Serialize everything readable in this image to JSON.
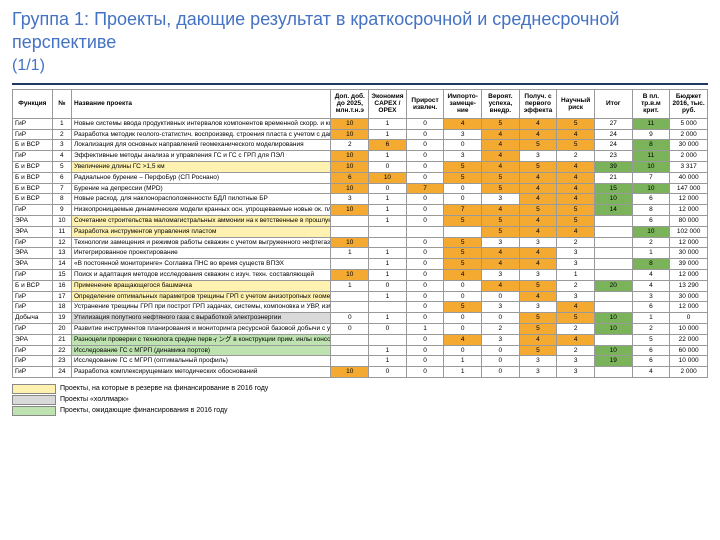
{
  "title": "Группа 1: Проекты, дающие результат в краткосрочной и среднесрочной перспективе",
  "subtitle": "(1/1)",
  "columns": [
    "Функция",
    "№",
    "Название проекта",
    "Доп. доб. до 2025, млн.т.н.э",
    "Экономия CAPEX / OPEX",
    "Прирост извлеч.",
    "Импорто­замеще­ние",
    "Вероят. успеха, внедр.",
    "Получ. с первого эффекта",
    "Научный риск",
    "Итог",
    "В пл. тр.в.м крит.",
    "Бюджет 2016, тыс. руб."
  ],
  "legend": [
    {
      "color": "#fff2b0",
      "text": "Проекты, на которые в резерве на финансирование в 2016 году"
    },
    {
      "color": "#d9d9d9",
      "text": "Проекты «холлмарк»"
    },
    {
      "color": "#bfe3b0",
      "text": "Проекты, ожидающие финансирования в 2016 году"
    }
  ],
  "rows": [
    {
      "f": "ГиР",
      "n": 1,
      "name": "Новые системы ввода продуктивных интервалов компонентов временной скорр. и коэфф. по разрезу",
      "hl": "",
      "v": [
        10,
        1,
        0,
        4,
        5,
        4,
        5,
        27,
        11,
        "5 000"
      ],
      "c": [
        "o",
        "",
        "",
        "o",
        "o",
        "o",
        "o",
        "",
        "g",
        ""
      ]
    },
    {
      "f": "ГиР",
      "n": 2,
      "name": "Разработка методик геолого-статистич. воспроизвед. строения пласта с учетом с данными и испытаний",
      "hl": "",
      "v": [
        10,
        1,
        0,
        3,
        4,
        4,
        4,
        24,
        9,
        "2 000"
      ],
      "c": [
        "o",
        "",
        "",
        "",
        "o",
        "o",
        "o",
        "",
        "",
        ""
      ]
    },
    {
      "f": "Б и ВСР",
      "n": 3,
      "name": "Локализация для основных направлений геомеханического моделирования",
      "hl": "",
      "v": [
        2,
        6,
        0,
        0,
        4,
        5,
        5,
        24,
        8,
        "30 000"
      ],
      "c": [
        "",
        "o",
        "",
        "",
        "o",
        "o",
        "o",
        "",
        "g",
        ""
      ]
    },
    {
      "f": "ГиР",
      "n": 4,
      "name": "Эффективные методы анализа и управления ГС и ГС с ГРП для ПЭЛ",
      "hl": "",
      "v": [
        10,
        1,
        0,
        3,
        4,
        3,
        2,
        23,
        11,
        "2 000"
      ],
      "c": [
        "o",
        "",
        "",
        "",
        "o",
        "",
        "",
        "",
        "g",
        ""
      ]
    },
    {
      "f": "Б и ВСР",
      "n": 5,
      "name": "Увеличение длины ГС >1,5 км",
      "hl": "yellow",
      "v": [
        10,
        0,
        0,
        5,
        4,
        5,
        4,
        39,
        10,
        "3 317"
      ],
      "c": [
        "o",
        "",
        "",
        "o",
        "o",
        "o",
        "o",
        "g",
        "g",
        ""
      ]
    },
    {
      "f": "Б и ВСР",
      "n": 6,
      "name": "Радиальное бурение – ПерфоБур (СП Роснано)",
      "hl": "",
      "v": [
        6,
        10,
        0,
        5,
        5,
        4,
        4,
        21,
        7,
        "40 000"
      ],
      "c": [
        "o",
        "o",
        "",
        "o",
        "o",
        "o",
        "o",
        "",
        "",
        ""
      ]
    },
    {
      "f": "Б и ВСР",
      "n": 7,
      "name": "Бурение на депрессии (MPD)",
      "hl": "",
      "v": [
        10,
        0,
        7,
        0,
        5,
        4,
        4,
        15,
        10,
        "147 000"
      ],
      "c": [
        "o",
        "",
        "o",
        "",
        "o",
        "o",
        "o",
        "g",
        "g",
        ""
      ]
    },
    {
      "f": "Б и ВСР",
      "n": 8,
      "name": "Новые расход. для наклонорасположенности БДЛ пилотные БР",
      "hl": "",
      "v": [
        3,
        1,
        0,
        0,
        3,
        4,
        4,
        10,
        6,
        "12 000"
      ],
      "c": [
        "",
        "",
        "",
        "",
        "",
        "o",
        "o",
        "g",
        "",
        ""
      ]
    },
    {
      "f": "ГиР",
      "n": 9,
      "name": "Низкопроницаемые динамические модели кранных осн. упрощеваемые новые ок. плотных подходов н.о.",
      "hl": "",
      "v": [
        10,
        1,
        0,
        7,
        4,
        5,
        5,
        14,
        8,
        "12 000"
      ],
      "c": [
        "o",
        "",
        "",
        "o",
        "o",
        "o",
        "o",
        "g",
        "",
        ""
      ]
    },
    {
      "f": "ЭРА",
      "n": 10,
      "name": "Сочетание строительства маломагистральных аммонии на к ветственные в прошлую",
      "hl": "yellow",
      "v": [
        "",
        1,
        0,
        5,
        5,
        4,
        5,
        "",
        6,
        "80 000"
      ],
      "c": [
        "",
        "",
        "",
        "o",
        "o",
        "o",
        "o",
        "",
        "",
        ""
      ]
    },
    {
      "f": "ЭРА",
      "n": 11,
      "name": "Разработка инструментов управления пластом",
      "hl": "yellow",
      "v": [
        "",
        "",
        "",
        "",
        5,
        4,
        4,
        "",
        10,
        "102 000"
      ],
      "c": [
        "",
        "",
        "",
        "",
        "o",
        "o",
        "o",
        "",
        "g",
        ""
      ]
    },
    {
      "f": "ГиР",
      "n": 12,
      "name": "Технологии замещения и режимов работы скважин с учетом выгруженного нефтегаза с низким расп.",
      "hl": "",
      "v": [
        10,
        "",
        0,
        5,
        3,
        3,
        2,
        "",
        2,
        "12 000"
      ],
      "c": [
        "o",
        "",
        "",
        "o",
        "",
        "",
        "",
        "",
        "",
        ""
      ]
    },
    {
      "f": "ЭРА",
      "n": 13,
      "name": "Интегрированное проектирование",
      "hl": "",
      "v": [
        1,
        1,
        0,
        5,
        4,
        4,
        3,
        "",
        1,
        "30 000"
      ],
      "c": [
        "",
        "",
        "",
        "o",
        "o",
        "o",
        "",
        "",
        "",
        ""
      ]
    },
    {
      "f": "ЭРА",
      "n": 14,
      "name": "«В постоянной мониторинге» Соглавка ПНС во время существ ВПЭХ",
      "hl": "",
      "v": [
        "",
        1,
        0,
        5,
        4,
        4,
        3,
        "",
        8,
        "39 000"
      ],
      "c": [
        "",
        "",
        "",
        "o",
        "o",
        "o",
        "",
        "",
        "g",
        ""
      ]
    },
    {
      "f": "ГиР",
      "n": 15,
      "name": "Поиск и адаптация методов исследования скважин с изуч. техн. составляющей",
      "hl": "",
      "v": [
        10,
        1,
        0,
        4,
        3,
        3,
        1,
        "",
        4,
        "12 000"
      ],
      "c": [
        "o",
        "",
        "",
        "o",
        "",
        "",
        "",
        "",
        "",
        ""
      ]
    },
    {
      "f": "Б и ВСР",
      "n": 16,
      "name": "Применение вращающегося башмачка",
      "hl": "yellow",
      "v": [
        1,
        0,
        0,
        0,
        4,
        5,
        2,
        20,
        4,
        "13 290"
      ],
      "c": [
        "",
        "",
        "",
        "",
        "o",
        "o",
        "",
        "g",
        "",
        ""
      ]
    },
    {
      "f": "ГиР",
      "n": 17,
      "name": "Определение оптимальных параметров трещины ГРП с учетом анизотропных геомеханических свойств пласта",
      "hl": "yellow",
      "v": [
        "",
        1,
        0,
        0,
        0,
        4,
        3,
        "",
        3,
        "30 000"
      ],
      "c": [
        "",
        "",
        "",
        "",
        "",
        "o",
        "",
        "",
        "",
        ""
      ]
    },
    {
      "f": "ГиР",
      "n": 18,
      "name": "Устранение трещины ГРП при построт ГРП задачах, системы, компоновка и УВР, измененного под прошлого",
      "hl": "",
      "v": [
        "",
        "",
        0,
        5,
        3,
        3,
        4,
        "",
        6,
        "12 000"
      ],
      "c": [
        "",
        "",
        "",
        "o",
        "",
        "",
        "o",
        "",
        "",
        ""
      ]
    },
    {
      "f": "Добыча",
      "n": 19,
      "name": "Утилизация попутного нефтяного газа с выработкой электроэнергии",
      "hl": "gray",
      "v": [
        0,
        1,
        0,
        0,
        0,
        5,
        5,
        10,
        1,
        0
      ],
      "c": [
        "",
        "",
        "",
        "",
        "",
        "o",
        "o",
        "g",
        "",
        ""
      ]
    },
    {
      "f": "ГиР",
      "n": 20,
      "name": "Развитие инструментов планирования и мониторинга ресурсной базовой добычи с учетом сложных типов залечений",
      "hl": "",
      "v": [
        0,
        0,
        1,
        0,
        2,
        5,
        2,
        10,
        2,
        "10 000"
      ],
      "c": [
        "",
        "",
        "",
        "",
        "",
        "o",
        "",
        "g",
        "",
        ""
      ]
    },
    {
      "f": "ЭРА",
      "n": 21,
      "name": "Разноцели проверки с технолога средне первィング в конструкции прим. инлы консоменов сведения программной",
      "hl": "green",
      "v": [
        "",
        "",
        0,
        4,
        3,
        4,
        4,
        "",
        5,
        "22 000"
      ],
      "c": [
        "",
        "",
        "",
        "o",
        "",
        "o",
        "o",
        "",
        "",
        ""
      ]
    },
    {
      "f": "ГиР",
      "n": 22,
      "name": "Исследование ГС с МГРП (динамика портов)",
      "hl": "green",
      "v": [
        "",
        1,
        0,
        0,
        0,
        5,
        2,
        10,
        6,
        "60 000"
      ],
      "c": [
        "",
        "",
        "",
        "",
        "",
        "o",
        "",
        "g",
        "",
        ""
      ]
    },
    {
      "f": "ГиР",
      "n": 23,
      "name": "Исследование ГС с МГРП (оптимальный профиль)",
      "hl": "",
      "v": [
        "",
        1,
        0,
        1,
        0,
        3,
        3,
        19,
        6,
        "10 000"
      ],
      "c": [
        "",
        "",
        "",
        "",
        "",
        "",
        "",
        "g",
        "",
        ""
      ]
    },
    {
      "f": "ГиР",
      "n": 24,
      "name": "Разработка комплексирущемаих методических обоснований",
      "hl": "",
      "v": [
        10,
        0,
        0,
        1,
        0,
        3,
        3,
        "",
        4,
        "2 000"
      ],
      "c": [
        "o",
        "",
        "",
        "",
        "",
        "",
        "",
        "",
        "",
        ""
      ]
    }
  ]
}
